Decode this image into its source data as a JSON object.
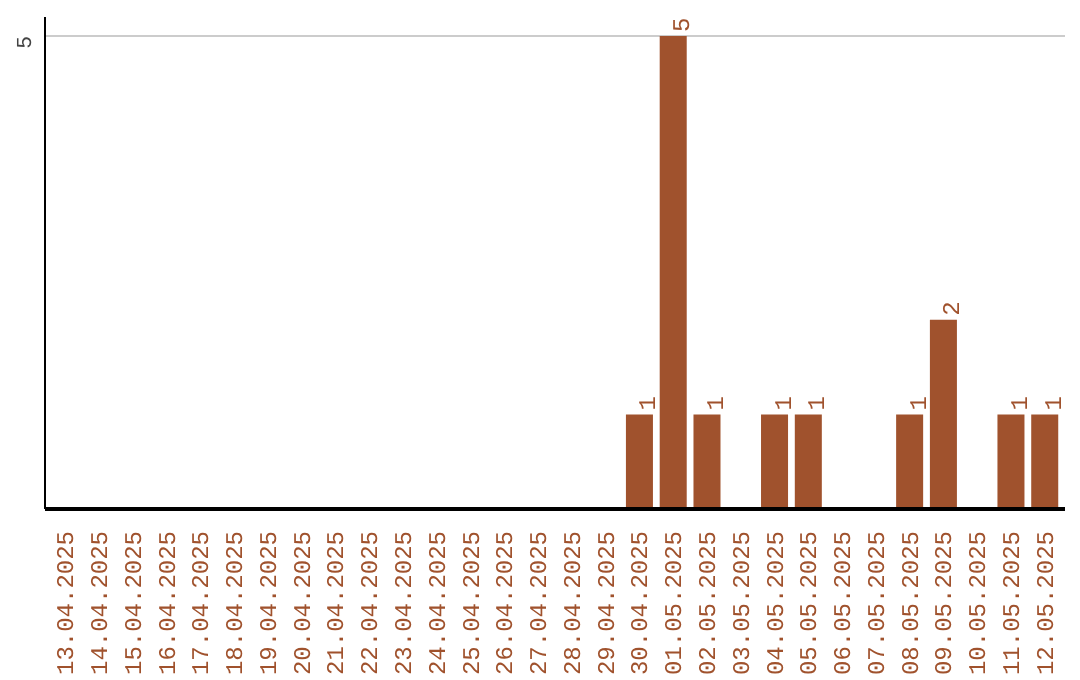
{
  "chart_data": {
    "type": "bar",
    "categories": [
      "13.04.2025",
      "14.04.2025",
      "15.04.2025",
      "16.04.2025",
      "17.04.2025",
      "18.04.2025",
      "19.04.2025",
      "20.04.2025",
      "21.04.2025",
      "22.04.2025",
      "23.04.2025",
      "24.04.2025",
      "25.04.2025",
      "26.04.2025",
      "27.04.2025",
      "28.04.2025",
      "29.04.2025",
      "30.04.2025",
      "01.05.2025",
      "02.05.2025",
      "03.05.2025",
      "04.05.2025",
      "05.05.2025",
      "06.05.2025",
      "07.05.2025",
      "08.05.2025",
      "09.05.2025",
      "10.05.2025",
      "11.05.2025",
      "12.05.2025"
    ],
    "values": [
      null,
      null,
      null,
      null,
      null,
      null,
      null,
      null,
      null,
      null,
      null,
      null,
      null,
      null,
      null,
      null,
      null,
      1,
      5,
      1,
      null,
      1,
      1,
      null,
      null,
      1,
      2,
      null,
      1,
      1
    ],
    "data_labels": true,
    "color": "#a0522d",
    "ref_lines": [
      {
        "axis": "y",
        "value": 5,
        "label": "5",
        "color": "#cccccc"
      }
    ]
  }
}
